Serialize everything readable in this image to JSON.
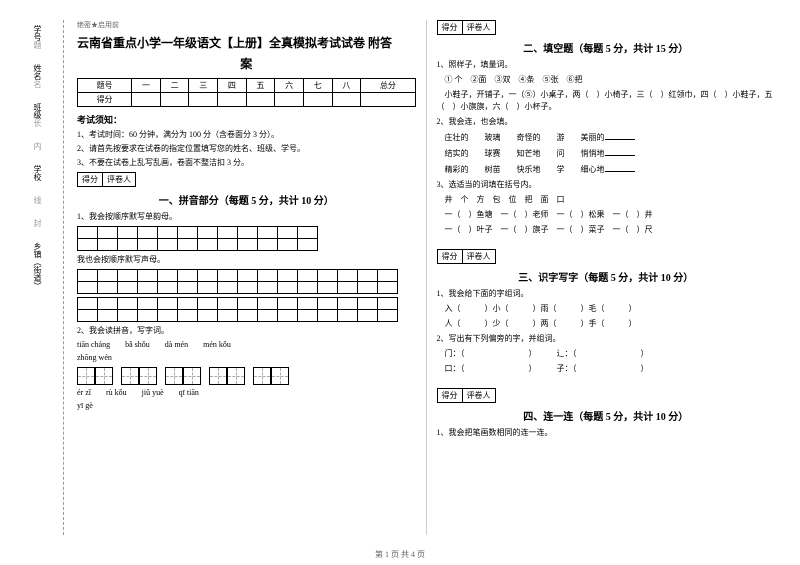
{
  "sidebar": {
    "items": [
      "学号",
      "姓名",
      "班级",
      "学校",
      "乡镇（街道）"
    ],
    "marks": [
      "题",
      "名",
      "长",
      "内",
      "线",
      "封"
    ]
  },
  "header": {
    "confidential": "绝密★启用前",
    "title_line1": "云南省重点小学一年级语文【上册】全真模拟考试试卷 附答",
    "title_line2": "案"
  },
  "score_table": {
    "row1": [
      "题号",
      "一",
      "二",
      "三",
      "四",
      "五",
      "六",
      "七",
      "八",
      "总分"
    ],
    "row2_label": "得分"
  },
  "notice": {
    "heading": "考试须知：",
    "items": [
      "1、考试时间：60 分钟，满分为 100 分（含卷面分 3 分）。",
      "2、请首先按要求在试卷的指定位置填写您的姓名、班级、学号。",
      "3、不要在试卷上乱写乱画，卷面不整洁扣 3 分。"
    ]
  },
  "score_box": {
    "c1": "得分",
    "c2": "评卷人"
  },
  "sections": {
    "s1": {
      "title": "一、拼音部分（每题 5 分，共计 10 分）",
      "q1": "1、我会按顺序默写单韵母。",
      "q1b": "我也会按顺序默写声母。",
      "q2": "2、我会读拼音，写字词。",
      "pinyin1": [
        "tiān cháng",
        "bǎ shǒu",
        "dà mén",
        "mén kǒu"
      ],
      "pinyin1b": "zhōng wén",
      "pinyin2": [
        "ér zǐ",
        "rù  kǒu",
        "jiǔ yuè",
        "qī tiān"
      ],
      "pinyin2b": "yī gè"
    },
    "s2": {
      "title": "二、填空题（每题 5 分，共计 15 分）",
      "q1_intro": "1、照样子，填量词。",
      "q1_a": "① 个　②面　③双　④条　⑤张　⑥把",
      "q1_b": "小鞋子，开铺子，一（⑤）小桌子，两（　）小椅子，三（　）红领巾，四（　）小鞋子，五（　）小旗旗，六（　）小杯子。",
      "q2_intro": "2、我会连，也会填。",
      "q2_lines": [
        "庄壮的　　玻璃　　奇怪的　　游　　美丽的",
        "结实的　　球赛　　知芒地　　问　　悄悄地",
        "精彩的　　树苗　　快乐地　　学　　细心地"
      ],
      "q3_intro": "3、选适当的词填在括号内。",
      "q3_opts": "井　个　方　包　位　把　面　口",
      "q3_a": "一（　）鱼塘　一（　）老师　一（　）松果　一（　）井",
      "q3_b": "一（　）叶子　一（　）旗子　一（　）菜子　一（　）尺"
    },
    "s3": {
      "title": "三、识字写字（每题 5 分，共计 10 分）",
      "q1_intro": "1、我会给下面的字组词。",
      "q1_a": "入（　　　）小（　　　）雨（　　　）毛（　　　）",
      "q1_b": "人（　　　）少（　　　）两（　　　）手（　　　）",
      "q2_intro": "2、写出有下列偏旁的字，并组词。",
      "q2_a": "门：（　　　　　　　　）　　　辶：（　　　　　　　　）",
      "q2_b": "口：（　　　　　　　　）　　　子：（　　　　　　　　）"
    },
    "s4": {
      "title": "四、连一连（每题 5 分，共计 10 分）",
      "q1": "1、我会把笔画数相同的连一连。"
    }
  },
  "footer": "第 1 页 共 4 页"
}
